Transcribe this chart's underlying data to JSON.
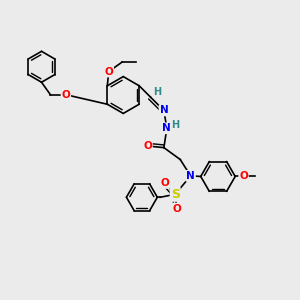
{
  "background_color": "#ebebeb",
  "bond_color": "#000000",
  "bond_width": 1.2,
  "atom_colors": {
    "C": "#000000",
    "H": "#2e8b8b",
    "N": "#0000ee",
    "O": "#ff0000",
    "S": "#cccc00"
  },
  "font_size": 7.5
}
